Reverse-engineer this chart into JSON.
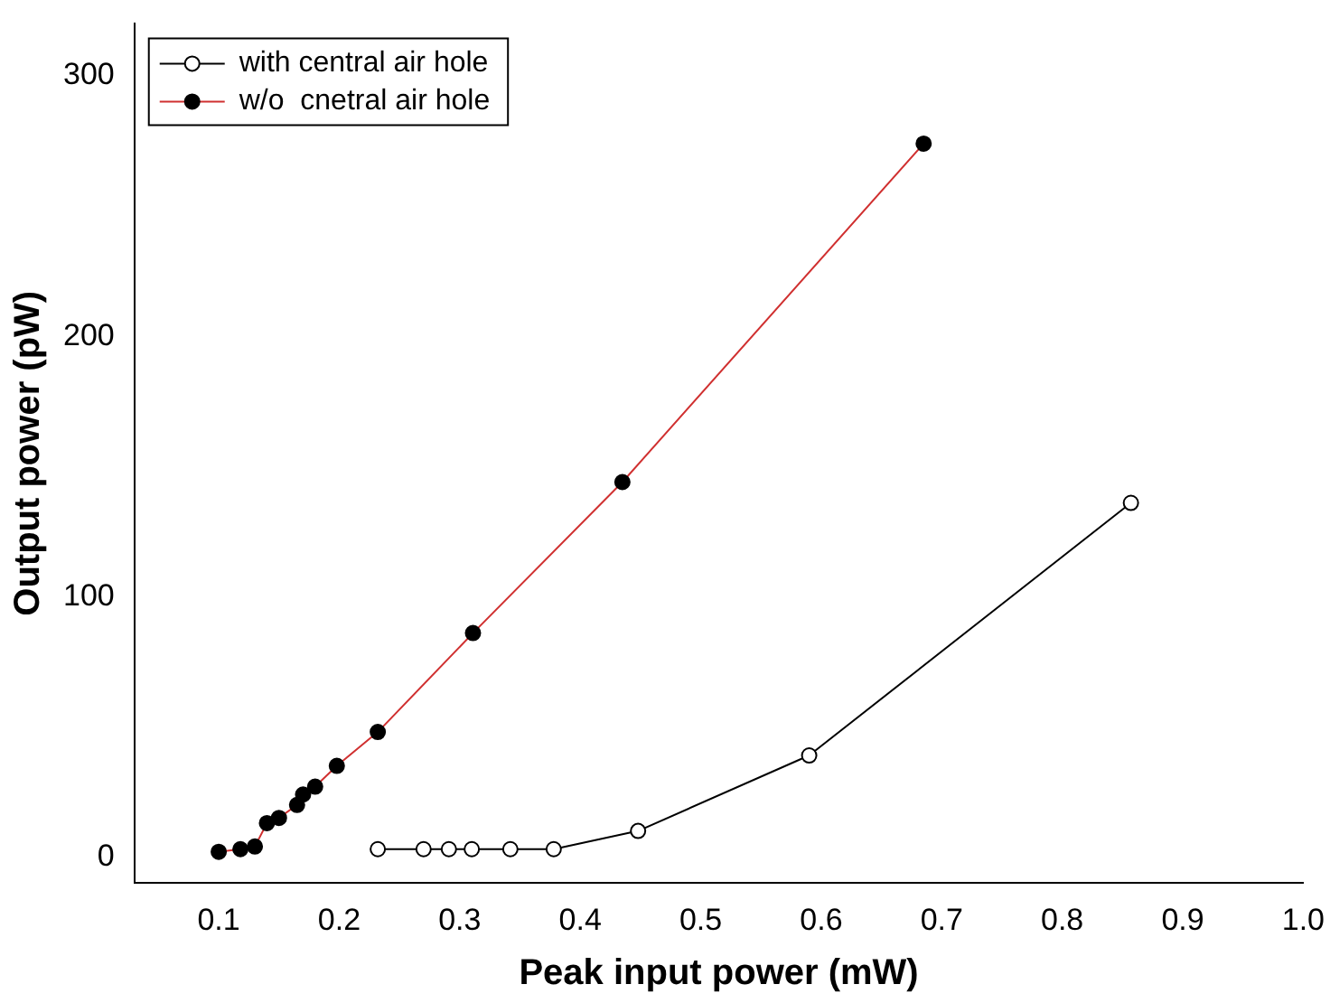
{
  "chart_data": {
    "type": "line",
    "xlabel": "Peak input power (mW)",
    "ylabel": "Output power (pW)",
    "xlim": [
      0.03,
      1.0
    ],
    "xticks": [
      0.1,
      0.2,
      0.3,
      0.4,
      0.5,
      0.6,
      0.7,
      0.8,
      0.9,
      {
        "value": 1.0,
        "label": "1.0"
      }
    ],
    "ylim": [
      -10,
      320
    ],
    "yticks": [
      0,
      100,
      200,
      300
    ],
    "grid": false,
    "legend": "top left",
    "series": [
      {
        "name": "with central air hole",
        "color": "#000000",
        "marker": "circle",
        "x": [
          0.232,
          0.27,
          0.291,
          0.31,
          0.342,
          0.378,
          0.448,
          0.59,
          0.857
        ],
        "values": [
          3,
          3,
          3,
          3,
          3,
          3,
          10,
          39,
          136
        ]
      },
      {
        "name": "w/o  cnetral air hole",
        "color": "#d03030",
        "marker": "circle",
        "x": [
          0.1,
          0.118,
          0.13,
          0.14,
          0.15,
          0.165,
          0.17,
          0.18,
          0.198,
          0.232,
          0.311,
          0.435,
          0.685
        ],
        "values": [
          2,
          3,
          4,
          13,
          15,
          20,
          24,
          27,
          35,
          48,
          86,
          144,
          274
        ]
      }
    ]
  }
}
